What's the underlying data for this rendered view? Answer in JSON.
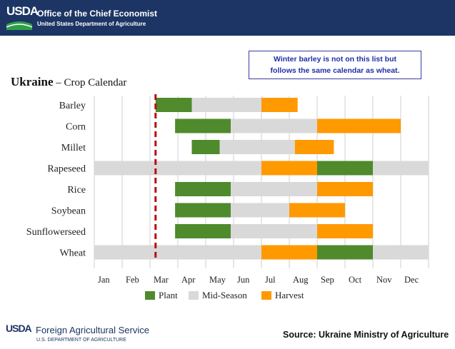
{
  "header": {
    "logo": "USDA",
    "title": "Office of the Chief Economist",
    "subtitle": "United States Department of Agriculture"
  },
  "note": {
    "line1": "Winter barley is not on this list but",
    "line2": "follows the same calendar as wheat."
  },
  "footer": {
    "logo": "USDA",
    "agency": "Foreign Agricultural Service",
    "department": "U.S. DEPARTMENT OF AGRICULTURE",
    "source": "Source: Ukraine Ministry of Agriculture"
  },
  "colors": {
    "header_bg": "#1c3564",
    "plant": "#4f8a2c",
    "mid_season": "#d9d9d9",
    "harvest": "#ff9900",
    "marker": "#b80d0d"
  },
  "chart_data": {
    "type": "gantt",
    "title_bold": "Ukraine",
    "title_rest": " – Crop Calendar",
    "months": [
      "Jan",
      "Feb",
      "Mar",
      "Apr",
      "May",
      "Jun",
      "Jul",
      "Aug",
      "Sep",
      "Oct",
      "Nov",
      "Dec"
    ],
    "x_range_months": [
      0,
      12
    ],
    "current_marker_month": 2.2,
    "legend": [
      {
        "key": "plant",
        "label": "Plant"
      },
      {
        "key": "mid",
        "label": "Mid-Season"
      },
      {
        "key": "harvest",
        "label": "Harvest"
      }
    ],
    "crops": [
      {
        "name": "Barley",
        "segments": [
          {
            "phase": "plant",
            "start": 2.2,
            "end": 3.5
          },
          {
            "phase": "mid",
            "start": 3.5,
            "end": 6.0
          },
          {
            "phase": "harvest",
            "start": 6.0,
            "end": 7.3
          }
        ]
      },
      {
        "name": "Corn",
        "segments": [
          {
            "phase": "plant",
            "start": 2.9,
            "end": 4.9
          },
          {
            "phase": "mid",
            "start": 4.9,
            "end": 8.0
          },
          {
            "phase": "harvest",
            "start": 8.0,
            "end": 11.0
          }
        ]
      },
      {
        "name": "Millet",
        "segments": [
          {
            "phase": "plant",
            "start": 3.5,
            "end": 4.5
          },
          {
            "phase": "mid",
            "start": 4.5,
            "end": 7.2
          },
          {
            "phase": "harvest",
            "start": 7.2,
            "end": 8.6
          }
        ]
      },
      {
        "name": "Rapeseed",
        "segments": [
          {
            "phase": "mid",
            "start": 0,
            "end": 6.0
          },
          {
            "phase": "harvest",
            "start": 6.0,
            "end": 8.0
          },
          {
            "phase": "plant",
            "start": 8.0,
            "end": 10.0
          },
          {
            "phase": "mid",
            "start": 10.0,
            "end": 12.0
          }
        ]
      },
      {
        "name": "Rice",
        "segments": [
          {
            "phase": "plant",
            "start": 2.9,
            "end": 4.9
          },
          {
            "phase": "mid",
            "start": 4.9,
            "end": 8.0
          },
          {
            "phase": "harvest",
            "start": 8.0,
            "end": 10.0
          }
        ]
      },
      {
        "name": "Soybean",
        "segments": [
          {
            "phase": "plant",
            "start": 2.9,
            "end": 4.9
          },
          {
            "phase": "mid",
            "start": 4.9,
            "end": 7.0
          },
          {
            "phase": "harvest",
            "start": 7.0,
            "end": 9.0
          }
        ]
      },
      {
        "name": "Sunflowerseed",
        "segments": [
          {
            "phase": "plant",
            "start": 2.9,
            "end": 4.9
          },
          {
            "phase": "mid",
            "start": 4.9,
            "end": 8.0
          },
          {
            "phase": "harvest",
            "start": 8.0,
            "end": 10.0
          }
        ]
      },
      {
        "name": "Wheat",
        "segments": [
          {
            "phase": "mid",
            "start": 0,
            "end": 6.0
          },
          {
            "phase": "harvest",
            "start": 6.0,
            "end": 8.0
          },
          {
            "phase": "plant",
            "start": 8.0,
            "end": 10.0
          },
          {
            "phase": "mid",
            "start": 10.0,
            "end": 12.0
          }
        ]
      }
    ]
  }
}
